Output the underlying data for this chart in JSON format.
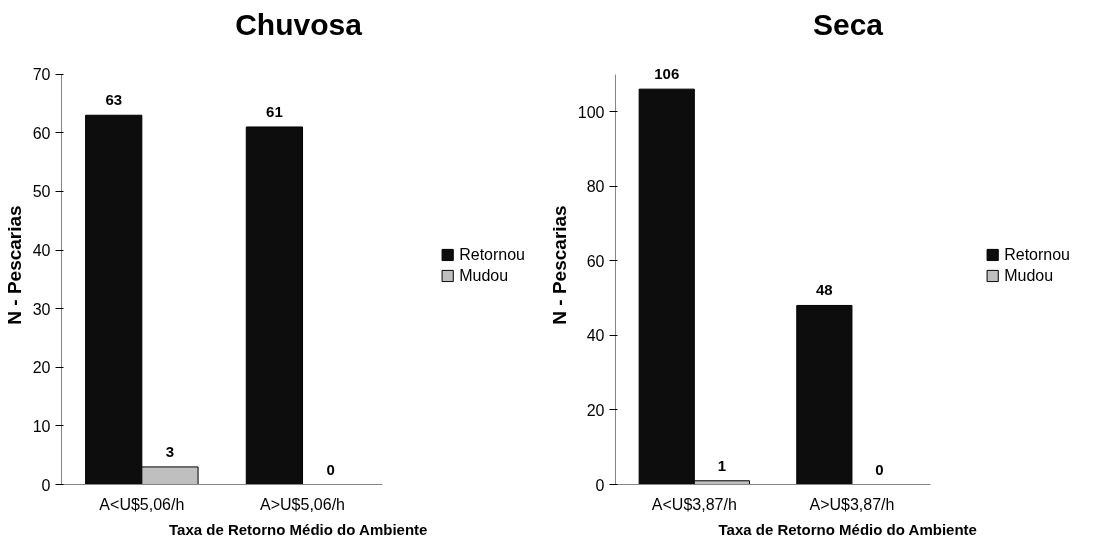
{
  "chart_data": [
    {
      "type": "bar",
      "title": "Chuvosa",
      "xlabel": "Taxa de Retorno Médio do Ambiente",
      "ylabel": "N - Pescarias",
      "categories": [
        "A<U$5,06/h",
        "A>U$5,06/h"
      ],
      "ylim": [
        0,
        70
      ],
      "yticks": [
        0,
        10,
        20,
        30,
        40,
        50,
        60,
        70
      ],
      "data_labels": true,
      "legend": "right",
      "grid": false,
      "series": [
        {
          "name": "Retornou",
          "color": "#0d0d0d",
          "values": [
            63,
            61
          ]
        },
        {
          "name": "Mudou",
          "color": "#bfbfbf",
          "values": [
            3,
            0
          ]
        }
      ]
    },
    {
      "type": "bar",
      "title": "Seca",
      "xlabel": "Taxa de Retorno Médio do Ambiente",
      "ylabel": "N - Pescarias",
      "categories": [
        "A<U$3,87/h",
        "A>U$3,87/h"
      ],
      "ylim": [
        0,
        110
      ],
      "yticks": [
        0,
        20,
        40,
        60,
        80,
        100
      ],
      "data_labels": true,
      "legend": "right",
      "grid": false,
      "series": [
        {
          "name": "Retornou",
          "color": "#0d0d0d",
          "values": [
            106,
            48
          ]
        },
        {
          "name": "Mudou",
          "color": "#bfbfbf",
          "values": [
            1,
            0
          ]
        }
      ]
    }
  ]
}
